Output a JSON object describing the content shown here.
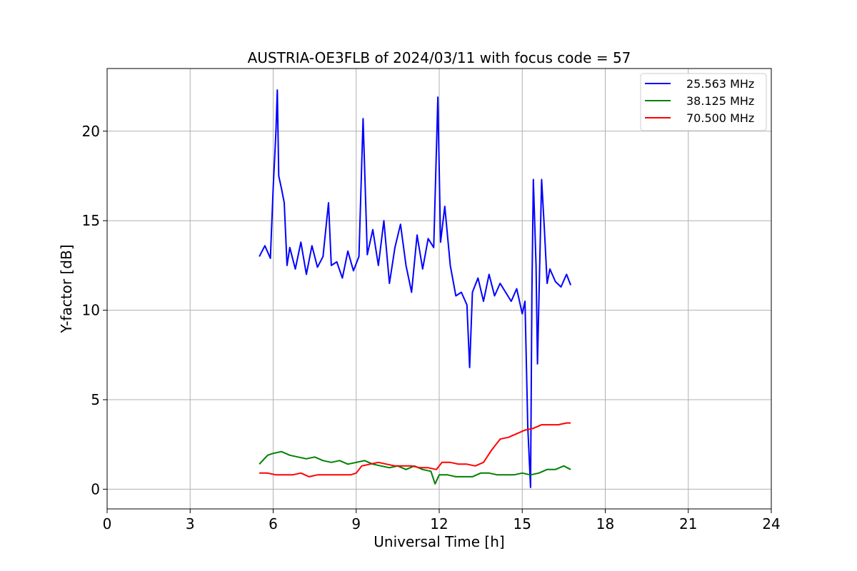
{
  "chart_data": {
    "type": "line",
    "title": "AUSTRIA-OE3FLB of 2024/03/11 with focus code = 57",
    "xlabel": "Universal Time [h]",
    "ylabel": "Y-factor [dB]",
    "xlim": [
      0,
      24
    ],
    "ylim": [
      -1.1,
      23.5
    ],
    "xticks": [
      0,
      3,
      6,
      9,
      12,
      15,
      18,
      21,
      24
    ],
    "yticks": [
      0,
      5,
      10,
      15,
      20
    ],
    "grid": true,
    "legend_position": "top-right",
    "series": [
      {
        "name": "25.563 MHz",
        "color": "#0000ff",
        "x": [
          5.5,
          5.7,
          5.9,
          6.0,
          6.1,
          6.15,
          6.2,
          6.3,
          6.4,
          6.5,
          6.6,
          6.8,
          7.0,
          7.2,
          7.4,
          7.6,
          7.8,
          8.0,
          8.1,
          8.3,
          8.5,
          8.7,
          8.9,
          9.1,
          9.25,
          9.4,
          9.6,
          9.8,
          10.0,
          10.2,
          10.4,
          10.6,
          10.8,
          11.0,
          11.2,
          11.4,
          11.6,
          11.8,
          11.95,
          12.05,
          12.2,
          12.4,
          12.6,
          12.8,
          13.0,
          13.1,
          13.2,
          13.4,
          13.6,
          13.8,
          14.0,
          14.2,
          14.4,
          14.6,
          14.8,
          15.0,
          15.1,
          15.2,
          15.3,
          15.35,
          15.4,
          15.5,
          15.55,
          15.7,
          15.8,
          15.9,
          16.0,
          16.2,
          16.4,
          16.6,
          16.75
        ],
        "y": [
          13.0,
          13.6,
          12.9,
          16.8,
          20.0,
          22.3,
          17.5,
          16.8,
          16.0,
          12.5,
          13.5,
          12.3,
          13.8,
          12.0,
          13.6,
          12.4,
          13.0,
          16.0,
          12.5,
          12.7,
          11.8,
          13.3,
          12.2,
          13.0,
          20.7,
          13.1,
          14.5,
          12.5,
          15.0,
          11.5,
          13.5,
          14.8,
          12.5,
          11.0,
          14.2,
          12.3,
          14.0,
          13.5,
          21.9,
          13.8,
          15.8,
          12.5,
          10.8,
          11.0,
          10.3,
          6.8,
          11.0,
          11.8,
          10.5,
          12.0,
          10.8,
          11.5,
          11.0,
          10.5,
          11.2,
          9.8,
          10.5,
          3.5,
          0.1,
          11.0,
          17.3,
          12.5,
          7.0,
          17.3,
          14.5,
          11.5,
          12.3,
          11.6,
          11.3,
          12.0,
          11.4
        ]
      },
      {
        "name": "38.125 MHz",
        "color": "#008000",
        "x": [
          5.5,
          5.8,
          6.0,
          6.3,
          6.6,
          6.9,
          7.2,
          7.5,
          7.8,
          8.1,
          8.4,
          8.7,
          9.0,
          9.3,
          9.6,
          9.9,
          10.2,
          10.5,
          10.8,
          11.1,
          11.4,
          11.7,
          11.85,
          12.0,
          12.3,
          12.6,
          12.9,
          13.2,
          13.5,
          13.8,
          14.1,
          14.4,
          14.7,
          15.0,
          15.3,
          15.6,
          15.9,
          16.2,
          16.5,
          16.75
        ],
        "y": [
          1.4,
          1.9,
          2.0,
          2.1,
          1.9,
          1.8,
          1.7,
          1.8,
          1.6,
          1.5,
          1.6,
          1.4,
          1.5,
          1.6,
          1.4,
          1.3,
          1.2,
          1.3,
          1.1,
          1.3,
          1.1,
          1.0,
          0.3,
          0.8,
          0.8,
          0.7,
          0.7,
          0.7,
          0.9,
          0.9,
          0.8,
          0.8,
          0.8,
          0.9,
          0.8,
          0.9,
          1.1,
          1.1,
          1.3,
          1.1
        ]
      },
      {
        "name": "70.500 MHz",
        "color": "#ff0000",
        "x": [
          5.5,
          5.8,
          6.1,
          6.4,
          6.7,
          7.0,
          7.3,
          7.6,
          7.9,
          8.2,
          8.5,
          8.8,
          9.0,
          9.2,
          9.5,
          9.8,
          10.1,
          10.4,
          10.7,
          11.0,
          11.3,
          11.6,
          11.9,
          12.1,
          12.4,
          12.7,
          13.0,
          13.3,
          13.6,
          13.9,
          14.2,
          14.5,
          14.8,
          15.1,
          15.4,
          15.7,
          16.0,
          16.3,
          16.6,
          16.75
        ],
        "y": [
          0.9,
          0.9,
          0.8,
          0.8,
          0.8,
          0.9,
          0.7,
          0.8,
          0.8,
          0.8,
          0.8,
          0.8,
          0.9,
          1.3,
          1.4,
          1.5,
          1.4,
          1.3,
          1.3,
          1.3,
          1.2,
          1.2,
          1.1,
          1.5,
          1.5,
          1.4,
          1.4,
          1.3,
          1.5,
          2.2,
          2.8,
          2.9,
          3.1,
          3.3,
          3.4,
          3.6,
          3.6,
          3.6,
          3.7,
          3.7
        ]
      }
    ]
  }
}
